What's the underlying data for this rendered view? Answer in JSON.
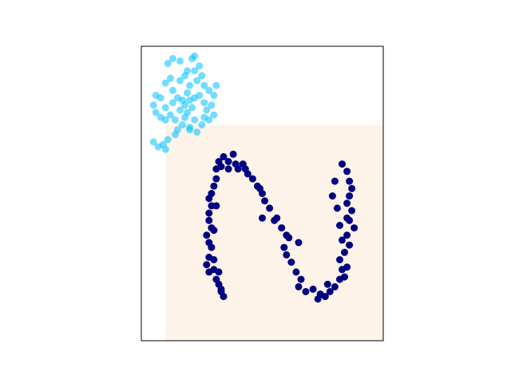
{
  "chart_data": {
    "type": "scatter",
    "title": "",
    "xlabel": "",
    "ylabel": "",
    "xlim": [
      0,
      10
    ],
    "ylim": [
      0,
      12
    ],
    "grid": false,
    "ticks_visible": false,
    "region": {
      "x": [
        1,
        10
      ],
      "y": [
        0,
        8.8
      ],
      "color": "#fdf3e8"
    },
    "series": [
      {
        "color": "#00bfff",
        "alpha": 0.55,
        "points": [
          [
            1.1,
            11.3
          ],
          [
            1.3,
            11.5
          ],
          [
            1.6,
            11.4
          ],
          [
            1.9,
            11.0
          ],
          [
            2.1,
            11.5
          ],
          [
            2.2,
            11.6
          ],
          [
            2.2,
            11.0
          ],
          [
            2.4,
            11.2
          ],
          [
            1.0,
            10.5
          ],
          [
            1.2,
            10.7
          ],
          [
            1.6,
            10.6
          ],
          [
            1.8,
            10.8
          ],
          [
            2.0,
            10.4
          ],
          [
            2.3,
            10.6
          ],
          [
            2.5,
            10.8
          ],
          [
            2.8,
            10.2
          ],
          [
            3.1,
            10.4
          ],
          [
            3.0,
            10.0
          ],
          [
            0.8,
            9.9
          ],
          [
            1.0,
            9.5
          ],
          [
            1.3,
            9.7
          ],
          [
            1.5,
            9.9
          ],
          [
            1.6,
            9.4
          ],
          [
            1.8,
            9.6
          ],
          [
            1.9,
            10.1
          ],
          [
            2.0,
            9.8
          ],
          [
            2.1,
            9.5
          ],
          [
            2.2,
            9.9
          ],
          [
            2.4,
            10.0
          ],
          [
            2.6,
            9.7
          ],
          [
            2.7,
            9.4
          ],
          [
            2.9,
            9.6
          ],
          [
            3.0,
            9.2
          ],
          [
            0.5,
            9.6
          ],
          [
            0.6,
            9.3
          ],
          [
            0.8,
            9.1
          ],
          [
            1.0,
            9.0
          ],
          [
            1.2,
            9.2
          ],
          [
            1.4,
            9.0
          ],
          [
            1.5,
            8.6
          ],
          [
            1.7,
            8.8
          ],
          [
            1.8,
            9.1
          ],
          [
            1.9,
            9.3
          ],
          [
            2.0,
            8.7
          ],
          [
            2.2,
            9.0
          ],
          [
            2.3,
            8.5
          ],
          [
            2.5,
            8.8
          ],
          [
            2.6,
            9.1
          ],
          [
            1.1,
            8.2
          ],
          [
            0.9,
            8.0
          ],
          [
            1.4,
            8.4
          ],
          [
            0.5,
            8.1
          ],
          [
            0.7,
            7.9
          ],
          [
            1.0,
            7.8
          ],
          [
            2.0,
            8.6
          ],
          [
            1.7,
            9.8
          ],
          [
            1.3,
            10.2
          ],
          [
            2.6,
            10.4
          ],
          [
            0.6,
            10.0
          ],
          [
            2.8,
            9.0
          ]
        ]
      },
      {
        "color": "#000080",
        "alpha": 1.0,
        "points": [
          [
            3.4,
            1.8
          ],
          [
            3.3,
            2.0
          ],
          [
            3.2,
            2.3
          ],
          [
            3.1,
            2.5
          ],
          [
            3.2,
            2.8
          ],
          [
            3.0,
            2.9
          ],
          [
            2.8,
            2.8
          ],
          [
            2.7,
            3.1
          ],
          [
            2.8,
            3.4
          ],
          [
            2.9,
            3.8
          ],
          [
            2.8,
            4.0
          ],
          [
            2.7,
            4.3
          ],
          [
            2.9,
            4.6
          ],
          [
            2.8,
            4.9
          ],
          [
            2.8,
            5.2
          ],
          [
            2.9,
            5.5
          ],
          [
            2.8,
            5.8
          ],
          [
            2.9,
            6.0
          ],
          [
            3.0,
            6.3
          ],
          [
            3.1,
            6.6
          ],
          [
            3.1,
            7.0
          ],
          [
            3.2,
            7.3
          ],
          [
            3.4,
            7.5
          ],
          [
            3.6,
            7.3
          ],
          [
            3.8,
            7.6
          ],
          [
            3.9,
            7.2
          ],
          [
            4.0,
            7.0
          ],
          [
            4.2,
            7.2
          ],
          [
            4.4,
            6.8
          ],
          [
            4.6,
            6.6
          ],
          [
            4.8,
            6.3
          ],
          [
            5.0,
            6.0
          ],
          [
            5.1,
            5.7
          ],
          [
            5.3,
            5.4
          ],
          [
            5.5,
            4.9
          ],
          [
            5.8,
            4.6
          ],
          [
            6.0,
            4.3
          ],
          [
            5.9,
            3.8
          ],
          [
            6.0,
            3.5
          ],
          [
            6.2,
            3.2
          ],
          [
            6.4,
            2.8
          ],
          [
            6.6,
            2.5
          ],
          [
            6.5,
            2.2
          ],
          [
            6.8,
            2.0
          ],
          [
            7.1,
            2.1
          ],
          [
            7.4,
            1.9
          ],
          [
            7.6,
            1.8
          ],
          [
            7.8,
            2.0
          ],
          [
            8.0,
            2.2
          ],
          [
            8.2,
            2.5
          ],
          [
            8.3,
            2.9
          ],
          [
            8.2,
            3.3
          ],
          [
            8.4,
            3.6
          ],
          [
            8.6,
            3.9
          ],
          [
            8.5,
            4.3
          ],
          [
            8.8,
            4.6
          ],
          [
            8.6,
            4.9
          ],
          [
            8.7,
            5.3
          ],
          [
            8.5,
            5.6
          ],
          [
            8.6,
            5.9
          ],
          [
            8.7,
            6.2
          ],
          [
            8.6,
            6.5
          ],
          [
            8.5,
            6.9
          ],
          [
            8.3,
            7.2
          ],
          [
            8.0,
            6.5
          ],
          [
            7.9,
            5.9
          ],
          [
            8.1,
            5.4
          ],
          [
            8.2,
            4.7
          ],
          [
            8.3,
            4.1
          ],
          [
            8.5,
            3.0
          ],
          [
            7.7,
            2.3
          ],
          [
            7.3,
            1.7
          ],
          [
            6.5,
            4.0
          ],
          [
            6.1,
            4.2
          ],
          [
            5.6,
            5.0
          ],
          [
            5.0,
            5.0
          ],
          [
            4.9,
            6.2
          ],
          [
            4.3,
            7.0
          ],
          [
            3.3,
            7.1
          ],
          [
            3.6,
            7.0
          ],
          [
            3.1,
            5.5
          ],
          [
            3.0,
            4.5
          ],
          [
            3.0,
            3.3
          ],
          [
            3.3,
            2.1
          ],
          [
            8.5,
            5.0
          ],
          [
            8.4,
            2.6
          ]
        ]
      }
    ]
  }
}
